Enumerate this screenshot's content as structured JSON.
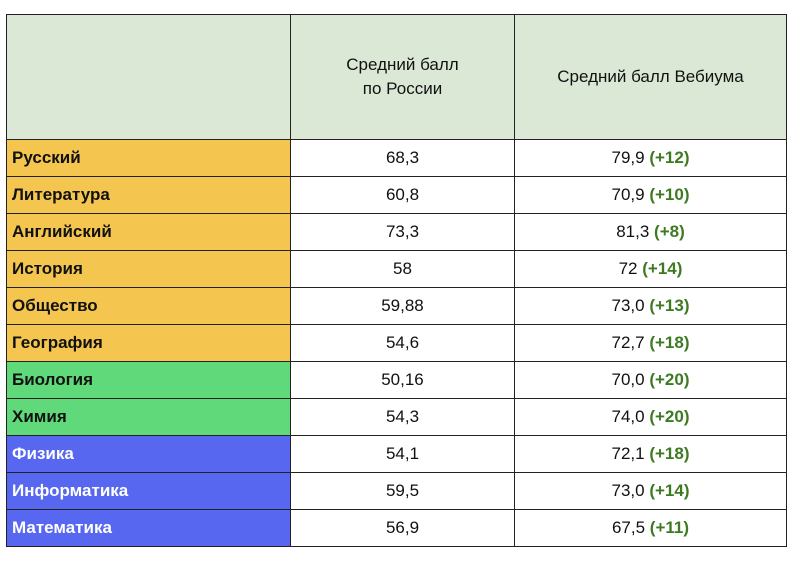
{
  "header": {
    "subject": "",
    "russia_line1": "Средний балл",
    "russia_line2": "по России",
    "vebium": "Средний балл Вебиума"
  },
  "colors": {
    "header_bg": "#dce8d6",
    "humanities": "#f5c64f",
    "natural": "#5fd97a",
    "exact": "#5767f0",
    "exact_text": "#ffffff",
    "delta_text": "#3d7a22"
  },
  "rows": [
    {
      "subject": "Русский",
      "russia": "68,3",
      "vebium": "79,9",
      "delta": "(+12)",
      "group": "humanities"
    },
    {
      "subject": "Литература",
      "russia": "60,8",
      "vebium": "70,9",
      "delta": "(+10)",
      "group": "humanities"
    },
    {
      "subject": "Английский",
      "russia": "73,3",
      "vebium": "81,3",
      "delta": "(+8)",
      "group": "humanities"
    },
    {
      "subject": "История",
      "russia": "58",
      "vebium": "72",
      "delta": "(+14)",
      "group": "humanities"
    },
    {
      "subject": "Общество",
      "russia": "59,88",
      "vebium": "73,0",
      "delta": "(+13)",
      "group": "humanities"
    },
    {
      "subject": "География",
      "russia": "54,6",
      "vebium": "72,7",
      "delta": "(+18)",
      "group": "humanities"
    },
    {
      "subject": "Биология",
      "russia": "50,16",
      "vebium": "70,0",
      "delta": "(+20)",
      "group": "natural"
    },
    {
      "subject": "Химия",
      "russia": "54,3",
      "vebium": "74,0",
      "delta": "(+20)",
      "group": "natural"
    },
    {
      "subject": "Физика",
      "russia": "54,1",
      "vebium": "72,1",
      "delta": "(+18)",
      "group": "exact"
    },
    {
      "subject": "Информатика",
      "russia": "59,5",
      "vebium": "73,0",
      "delta": "(+14)",
      "group": "exact"
    },
    {
      "subject": "Математика",
      "russia": "56,9",
      "vebium": "67,5",
      "delta": "(+11)",
      "group": "exact"
    }
  ]
}
